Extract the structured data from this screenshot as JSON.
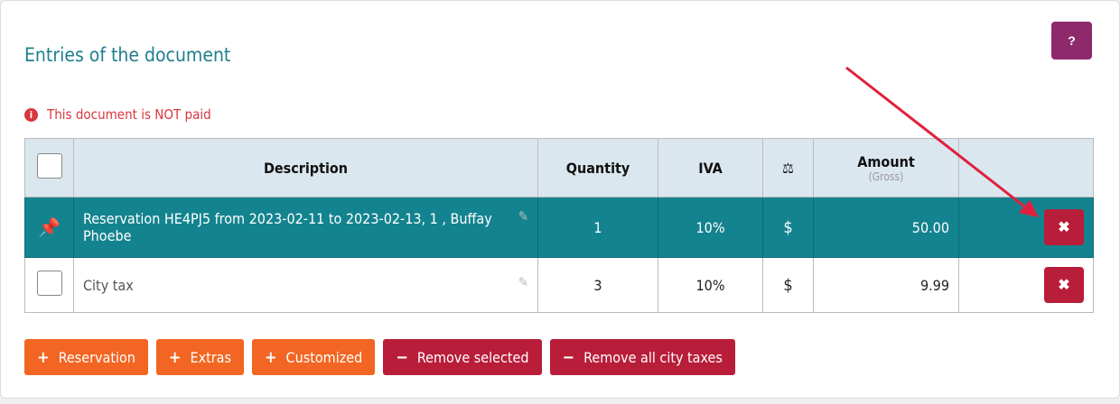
{
  "section_title": "Entries of the document",
  "help_label": "?",
  "alert": "This document is NOT paid",
  "colors": {
    "teal": "#13838f",
    "orange": "#f26522",
    "red": "#b81d3a",
    "purple": "#8e2a6b"
  },
  "table": {
    "headers": {
      "description": "Description",
      "quantity": "Quantity",
      "iva": "IVA",
      "amount": "Amount",
      "amount_sub": "(Gross)"
    },
    "rows": [
      {
        "description": "Reservation HE4PJ5 from 2023-02-11 to 2023-02-13, 1 , Buffay Phoebe",
        "quantity": "1",
        "iva": "10%",
        "currency": "$",
        "amount": "50.00",
        "pinned": true
      },
      {
        "description": "City tax",
        "quantity": "3",
        "iva": "10%",
        "currency": "$",
        "amount": "9.99",
        "pinned": false
      }
    ]
  },
  "buttons": {
    "reservation": "Reservation",
    "extras": "Extras",
    "customized": "Customized",
    "remove_selected": "Remove selected",
    "remove_city_taxes": "Remove all city taxes"
  }
}
